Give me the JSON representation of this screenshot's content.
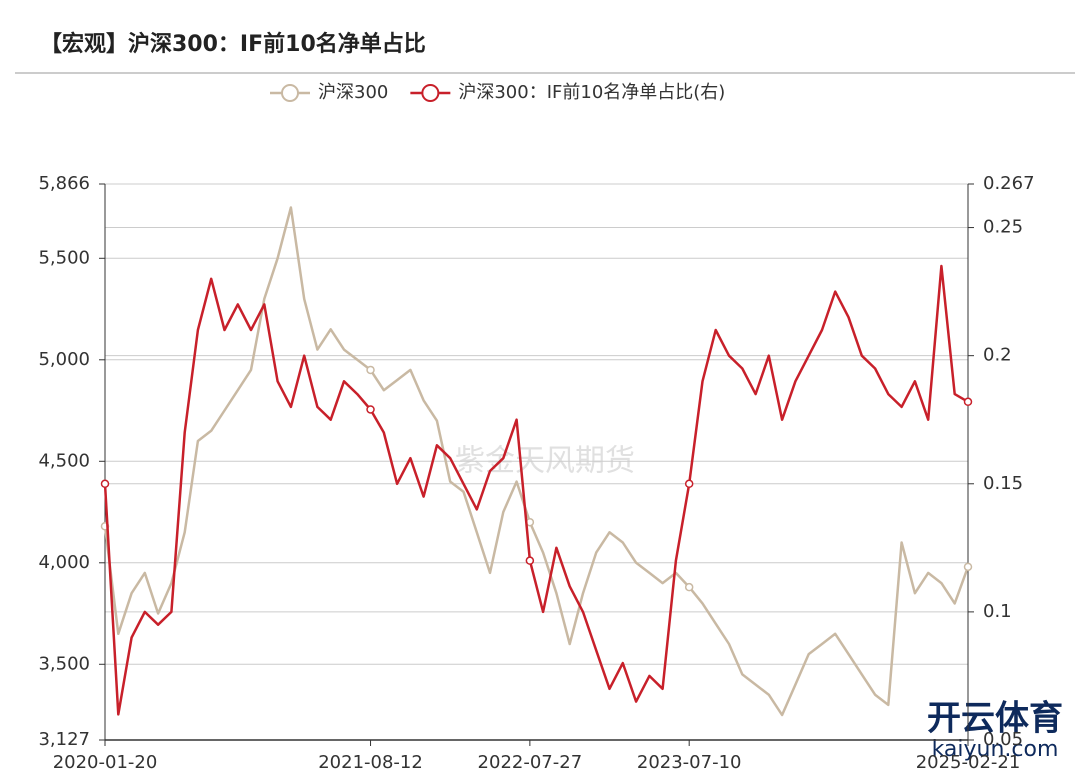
{
  "chart_data": {
    "type": "line",
    "title": "【宏观】沪深300：IF前10名净单占比",
    "watermarks": [
      "紫金天风期货",
      "开云体育",
      "kaiyun.com"
    ],
    "categories": [
      "2020-01-20",
      null,
      null,
      null,
      null,
      null,
      null,
      null,
      null,
      null,
      null,
      null,
      null,
      null,
      null,
      null,
      null,
      null,
      null,
      null,
      "2021-08-12",
      null,
      null,
      null,
      null,
      null,
      null,
      null,
      null,
      null,
      null,
      null,
      "2022-07-27",
      null,
      null,
      null,
      null,
      null,
      null,
      null,
      null,
      null,
      null,
      null,
      "2023-07-10",
      null,
      null,
      null,
      null,
      null,
      null,
      null,
      null,
      null,
      null,
      null,
      null,
      null,
      null,
      null,
      null,
      null,
      null,
      null,
      null,
      "2025-02-21"
    ],
    "series": [
      {
        "name": "沪深300",
        "color": "#c9b9a3",
        "values": [
          4180,
          3650,
          3850,
          3950,
          3750,
          3900,
          4150,
          4600,
          4650,
          4750,
          4850,
          4950,
          5300,
          5500,
          5750,
          5300,
          5050,
          5150,
          5050,
          5000,
          4950,
          4850,
          4900,
          4950,
          4800,
          4700,
          4400,
          4350,
          4150,
          3950,
          4250,
          4400,
          4200,
          4050,
          3850,
          3600,
          3850,
          4050,
          4150,
          4100,
          4000,
          3950,
          3900,
          3950,
          3880,
          3800,
          3700,
          3600,
          3450,
          3400,
          3350,
          3250,
          3400,
          3550,
          3600,
          3650,
          3550,
          3450,
          3350,
          3300,
          4100,
          3850,
          3950,
          3900,
          3800,
          3980
        ]
      },
      {
        "name": "沪深300：IF前10名净单占比(右)",
        "color": "#c8202a",
        "axis": "y2",
        "values": [
          0.15,
          0.06,
          0.09,
          0.1,
          0.095,
          0.1,
          0.17,
          0.21,
          0.23,
          0.21,
          0.22,
          0.21,
          0.22,
          0.19,
          0.18,
          0.2,
          0.18,
          0.175,
          0.19,
          0.185,
          0.179,
          0.17,
          0.15,
          0.16,
          0.145,
          0.165,
          0.16,
          0.15,
          0.14,
          0.155,
          0.16,
          0.175,
          0.12,
          0.1,
          0.125,
          0.11,
          0.1,
          0.085,
          0.07,
          0.08,
          0.065,
          0.075,
          0.07,
          0.12,
          0.15,
          0.19,
          0.21,
          0.2,
          0.195,
          0.185,
          0.2,
          0.175,
          0.19,
          0.2,
          0.21,
          0.225,
          0.215,
          0.2,
          0.195,
          0.185,
          0.18,
          0.19,
          0.175,
          0.235,
          0.185,
          0.182
        ]
      }
    ],
    "ylim": [
      3127,
      5866
    ],
    "yticks": [
      {
        "value": 3127,
        "label": "3,127"
      },
      {
        "value": 3500,
        "label": "3,500"
      },
      {
        "value": 4000,
        "label": "4,000"
      },
      {
        "value": 4500,
        "label": "4,500"
      },
      {
        "value": 5000,
        "label": "5,000"
      },
      {
        "value": 5500,
        "label": "5,500"
      },
      {
        "value": 5866,
        "label": "5,866"
      }
    ],
    "y2lim": [
      0.05,
      0.267
    ],
    "y2ticks": [
      0.05,
      0.1,
      0.15,
      0.2,
      0.25,
      0.267
    ],
    "grid": true
  }
}
